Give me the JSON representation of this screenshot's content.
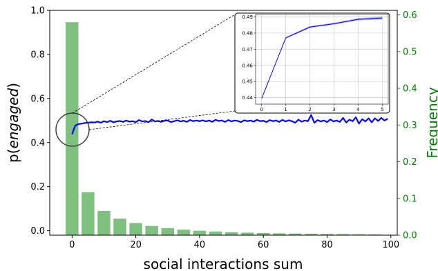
{
  "chart_data": {
    "main": {
      "type": "bar+line",
      "xlabel": "social interactions sum",
      "ylabel_left_prefix": "p(",
      "ylabel_left_italic": "engaged",
      "ylabel_left_suffix": ")",
      "ylabel_right": "Frequency",
      "xlim": [
        -7,
        102
      ],
      "ylim_left": [
        -0.02,
        1.0
      ],
      "ylim_right": [
        0.0,
        0.6124
      ],
      "x_ticks": [
        0,
        20,
        40,
        60,
        80,
        100
      ],
      "x_tick_labels": [
        "0",
        "20",
        "40",
        "60",
        "80",
        "100"
      ],
      "y_left_ticks": [
        0.0,
        0.2,
        0.4,
        0.6,
        0.8,
        1.0
      ],
      "y_left_tick_labels": [
        "0.0",
        "0.2",
        "0.4",
        "0.6",
        "0.8",
        "1.0"
      ],
      "y_right_ticks": [
        0.0,
        0.1,
        0.2,
        0.3,
        0.4,
        0.5,
        0.6
      ],
      "y_right_tick_labels": [
        "0.0",
        "0.1",
        "0.2",
        "0.3",
        "0.4",
        "0.5",
        "0.6"
      ],
      "bar_color": "#7fbf7f",
      "line_color": "#0000ff",
      "right_axis_color": "#008000",
      "histogram": {
        "bin_centers": [
          0,
          5,
          10,
          15,
          20,
          25,
          30,
          35,
          40,
          45,
          50,
          55,
          60,
          65,
          70,
          75,
          80,
          85,
          90,
          95
        ],
        "bin_width": 4,
        "frequency": [
          0.58,
          0.117,
          0.066,
          0.045,
          0.033,
          0.025,
          0.019,
          0.015,
          0.012,
          0.01,
          0.008,
          0.0068,
          0.0058,
          0.0049,
          0.0042,
          0.0036,
          0.0031,
          0.0027,
          0.0024,
          0.002
        ]
      },
      "series": [
        {
          "x": [
            0,
            1,
            2,
            3,
            4,
            5,
            6,
            7,
            8,
            9,
            10,
            11,
            12,
            13,
            14,
            15,
            16,
            17,
            18,
            19,
            20,
            21,
            22,
            23,
            24,
            25,
            26,
            27,
            28,
            29,
            30,
            31,
            32,
            33,
            34,
            35,
            36,
            37,
            38,
            39,
            40,
            41,
            42,
            43,
            44,
            45,
            46,
            47,
            48,
            49,
            50,
            51,
            52,
            53,
            54,
            55,
            56,
            57,
            58,
            59,
            60,
            61,
            62,
            63,
            64,
            65,
            66,
            67,
            68,
            69,
            70,
            71,
            72,
            73,
            74,
            75,
            76,
            77,
            78,
            79,
            80,
            81,
            82,
            83,
            84,
            85,
            86,
            87,
            88,
            89,
            90,
            91,
            92,
            93,
            94,
            95,
            96,
            97,
            98,
            99
          ],
          "y": [
            0.438,
            0.477,
            0.484,
            0.486,
            0.489,
            0.49,
            0.492,
            0.491,
            0.495,
            0.49,
            0.497,
            0.493,
            0.499,
            0.492,
            0.496,
            0.498,
            0.494,
            0.5,
            0.495,
            0.497,
            0.493,
            0.502,
            0.496,
            0.498,
            0.492,
            0.505,
            0.496,
            0.498,
            0.494,
            0.499,
            0.5,
            0.493,
            0.497,
            0.501,
            0.496,
            0.499,
            0.494,
            0.502,
            0.497,
            0.5,
            0.497,
            0.501,
            0.496,
            0.5,
            0.494,
            0.503,
            0.498,
            0.5,
            0.494,
            0.502,
            0.496,
            0.5,
            0.498,
            0.493,
            0.501,
            0.497,
            0.5,
            0.495,
            0.503,
            0.497,
            0.499,
            0.493,
            0.502,
            0.497,
            0.5,
            0.494,
            0.503,
            0.496,
            0.501,
            0.497,
            0.49,
            0.504,
            0.495,
            0.5,
            0.497,
            0.525,
            0.49,
            0.502,
            0.496,
            0.5,
            0.493,
            0.505,
            0.496,
            0.5,
            0.494,
            0.512,
            0.491,
            0.504,
            0.497,
            0.515,
            0.486,
            0.506,
            0.496,
            0.51,
            0.492,
            0.51,
            0.498,
            0.512,
            0.5,
            0.508
          ]
        }
      ]
    },
    "inset": {
      "type": "line",
      "xlim": [
        -0.25,
        5.25
      ],
      "ylim": [
        0.436,
        0.4915
      ],
      "x_ticks": [
        0,
        1,
        2,
        3,
        4,
        5
      ],
      "x_tick_labels": [
        "0",
        "1",
        "2",
        "3",
        "4",
        "5"
      ],
      "y_ticks": [
        0.44,
        0.45,
        0.46,
        0.47,
        0.48,
        0.49
      ],
      "y_tick_labels": [
        "0.44",
        "0.45",
        "0.46",
        "0.47",
        "0.48",
        "0.49"
      ],
      "grid": true,
      "x": [
        0,
        1,
        2,
        3,
        4,
        5
      ],
      "y": [
        0.4395,
        0.477,
        0.4837,
        0.4858,
        0.4885,
        0.4893
      ],
      "band_upper": [
        0.4395,
        0.4775,
        0.4843,
        0.4863,
        0.4892,
        0.4902
      ],
      "band_lower": [
        0.4395,
        0.4765,
        0.4831,
        0.4852,
        0.4878,
        0.4884
      ],
      "line_color": "#0000ff"
    }
  }
}
